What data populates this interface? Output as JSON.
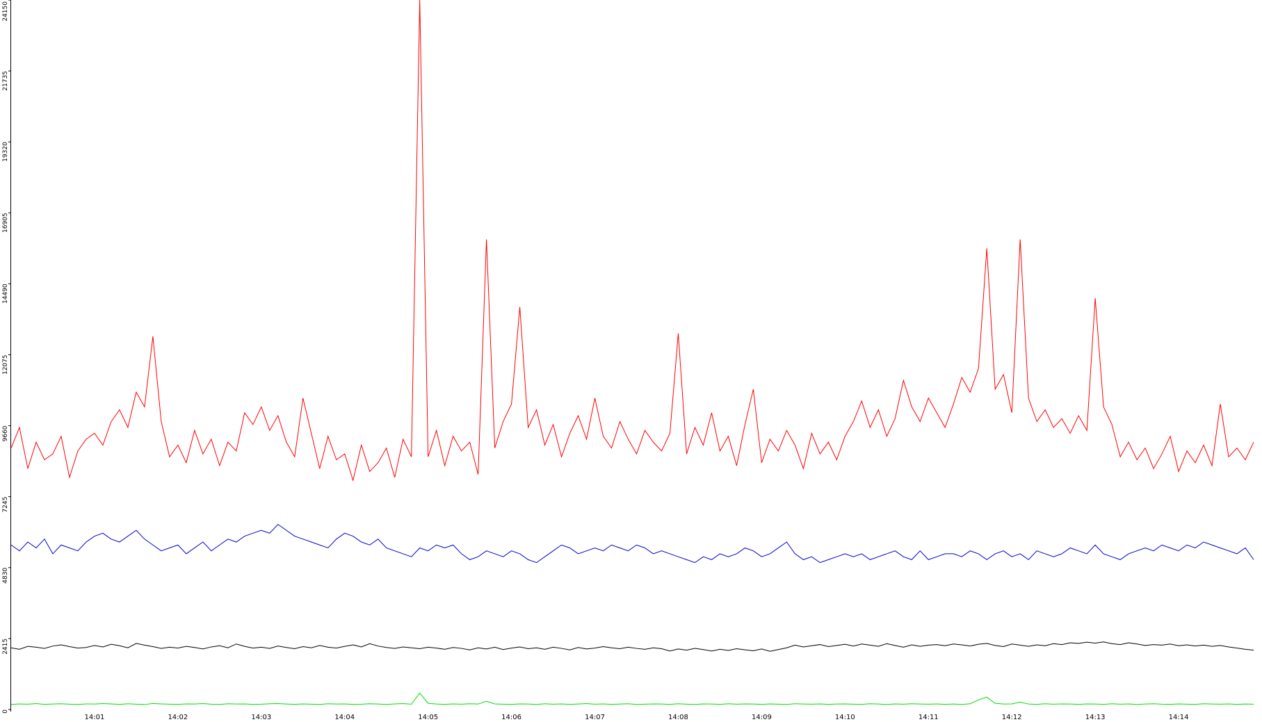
{
  "chart_data": {
    "type": "line",
    "categories": [
      null,
      null,
      null,
      null,
      null,
      null,
      null,
      null,
      null,
      null,
      "14:01",
      null,
      null,
      null,
      null,
      null,
      null,
      null,
      null,
      null,
      "14:02",
      null,
      null,
      null,
      null,
      null,
      null,
      null,
      null,
      null,
      "14:03",
      null,
      null,
      null,
      null,
      null,
      null,
      null,
      null,
      null,
      "14:04",
      null,
      null,
      null,
      null,
      null,
      null,
      null,
      null,
      null,
      "14:05",
      null,
      null,
      null,
      null,
      null,
      null,
      null,
      null,
      null,
      "14:06",
      null,
      null,
      null,
      null,
      null,
      null,
      null,
      null,
      null,
      "14:07",
      null,
      null,
      null,
      null,
      null,
      null,
      null,
      null,
      null,
      "14:08",
      null,
      null,
      null,
      null,
      null,
      null,
      null,
      null,
      null,
      "14:09",
      null,
      null,
      null,
      null,
      null,
      null,
      null,
      null,
      null,
      "14:10",
      null,
      null,
      null,
      null,
      null,
      null,
      null,
      null,
      null,
      "14:11",
      null,
      null,
      null,
      null,
      null,
      null,
      null,
      null,
      null,
      "14:12",
      null,
      null,
      null,
      null,
      null,
      null,
      null,
      null,
      null,
      "14:13",
      null,
      null,
      null,
      null,
      null,
      null,
      null,
      null,
      null,
      "14:14",
      null,
      null,
      null,
      null,
      null,
      null,
      null,
      null,
      null
    ],
    "ylim": [
      0,
      24150
    ],
    "yticks": [
      0,
      2415,
      4830,
      7245,
      9660,
      12075,
      14490,
      16905,
      19320,
      21735,
      24150
    ],
    "series": [
      {
        "color": "#ff0000",
        "values": [
          8900,
          9600,
          8200,
          9100,
          8500,
          8700,
          9300,
          7900,
          8800,
          9200,
          9400,
          9000,
          9800,
          10200,
          9600,
          10800,
          10300,
          12700,
          9800,
          8600,
          9000,
          8400,
          9500,
          8700,
          9200,
          8300,
          9100,
          8800,
          10100,
          9700,
          10300,
          9500,
          10000,
          9100,
          8600,
          10600,
          9400,
          8200,
          9300,
          8500,
          8700,
          7800,
          9000,
          8100,
          8400,
          8900,
          7900,
          9200,
          8600,
          24150,
          8600,
          9500,
          8300,
          9300,
          8800,
          9100,
          8000,
          16000,
          8900,
          9800,
          10400,
          13700,
          9600,
          10200,
          9000,
          9700,
          8600,
          9400,
          10000,
          9200,
          10600,
          9300,
          8900,
          9800,
          9200,
          8700,
          9500,
          9100,
          8800,
          9400,
          12800,
          8700,
          9600,
          9000,
          10100,
          8800,
          9300,
          8300,
          9700,
          10900,
          8400,
          9200,
          8800,
          9500,
          9000,
          8200,
          9400,
          8700,
          9100,
          8500,
          9300,
          9800,
          10500,
          9600,
          10200,
          9300,
          9900,
          11200,
          10300,
          9800,
          10600,
          10100,
          9600,
          10400,
          11300,
          10800,
          11600,
          15700,
          10900,
          11400,
          10100,
          16000,
          10600,
          9800,
          10200,
          9600,
          9900,
          9400,
          10000,
          9500,
          14000,
          10300,
          9700,
          8600,
          9100,
          8500,
          8900,
          8200,
          8700,
          9300,
          8100,
          8800,
          8400,
          9000,
          8300,
          10400,
          8600,
          8900,
          8500,
          9100
        ]
      },
      {
        "color": "#0000cc",
        "values": [
          5600,
          5400,
          5700,
          5500,
          5800,
          5300,
          5600,
          5500,
          5400,
          5700,
          5900,
          6000,
          5800,
          5700,
          5900,
          6100,
          5800,
          5600,
          5400,
          5500,
          5600,
          5300,
          5500,
          5700,
          5400,
          5600,
          5800,
          5700,
          5900,
          6000,
          6100,
          6000,
          6300,
          6100,
          5900,
          5800,
          5700,
          5600,
          5500,
          5800,
          6000,
          5900,
          5700,
          5600,
          5800,
          5500,
          5400,
          5300,
          5200,
          5500,
          5400,
          5600,
          5500,
          5600,
          5300,
          5100,
          5200,
          5400,
          5300,
          5200,
          5400,
          5300,
          5100,
          5000,
          5200,
          5400,
          5600,
          5500,
          5300,
          5400,
          5500,
          5400,
          5600,
          5500,
          5400,
          5600,
          5500,
          5300,
          5400,
          5300,
          5200,
          5100,
          5000,
          5200,
          5100,
          5300,
          5200,
          5300,
          5500,
          5400,
          5200,
          5300,
          5500,
          5700,
          5300,
          5100,
          5200,
          5000,
          5100,
          5200,
          5300,
          5200,
          5300,
          5100,
          5200,
          5300,
          5400,
          5200,
          5100,
          5400,
          5100,
          5200,
          5300,
          5300,
          5200,
          5400,
          5300,
          5100,
          5300,
          5400,
          5200,
          5300,
          5100,
          5400,
          5300,
          5200,
          5300,
          5500,
          5400,
          5300,
          5600,
          5300,
          5200,
          5100,
          5300,
          5400,
          5500,
          5400,
          5600,
          5500,
          5400,
          5600,
          5500,
          5700,
          5600,
          5500,
          5400,
          5300,
          5500,
          5100
        ]
      },
      {
        "color": "#000000",
        "values": [
          2100,
          2050,
          2150,
          2120,
          2080,
          2160,
          2200,
          2140,
          2090,
          2110,
          2180,
          2130,
          2220,
          2170,
          2100,
          2250,
          2190,
          2140,
          2080,
          2120,
          2090,
          2150,
          2110,
          2060,
          2130,
          2170,
          2100,
          2230,
          2150,
          2090,
          2120,
          2080,
          2160,
          2110,
          2070,
          2140,
          2100,
          2180,
          2120,
          2090,
          2150,
          2200,
          2130,
          2240,
          2160,
          2110,
          2080,
          2130,
          2100,
          2070,
          2120,
          2090,
          2050,
          2110,
          2080,
          2030,
          2100,
          2060,
          2120,
          2040,
          2090,
          2130,
          2070,
          2100,
          2050,
          2120,
          2080,
          2030,
          2110,
          2060,
          2090,
          2140,
          2100,
          2070,
          2120,
          2080,
          2050,
          2100,
          2070,
          1990,
          2060,
          2020,
          2080,
          2040,
          1990,
          2050,
          2010,
          2070,
          2030,
          2000,
          2060,
          1980,
          2040,
          2100,
          2190,
          2130,
          2170,
          2210,
          2140,
          2180,
          2220,
          2160,
          2230,
          2190,
          2150,
          2240,
          2180,
          2120,
          2200,
          2150,
          2190,
          2210,
          2170,
          2230,
          2200,
          2160,
          2220,
          2250,
          2180,
          2140,
          2230,
          2190,
          2150,
          2200,
          2170,
          2240,
          2210,
          2270,
          2250,
          2290,
          2260,
          2300,
          2240,
          2210,
          2270,
          2230,
          2180,
          2210,
          2190,
          2230,
          2170,
          2200,
          2160,
          2190,
          2150,
          2180,
          2130,
          2090,
          2050,
          2020
        ]
      },
      {
        "color": "#00dd00",
        "values": [
          170,
          190,
          180,
          200,
          175,
          185,
          195,
          180,
          170,
          190,
          185,
          200,
          190,
          175,
          195,
          180,
          170,
          205,
          190,
          180,
          175,
          190,
          185,
          200,
          180,
          170,
          195,
          185,
          190,
          175,
          180,
          195,
          200,
          185,
          175,
          190,
          180,
          170,
          195,
          185,
          190,
          175,
          180,
          195,
          185,
          170,
          190,
          200,
          180,
          560,
          210,
          185,
          175,
          190,
          180,
          195,
          185,
          280,
          190,
          180,
          175,
          190,
          185,
          170,
          195,
          180,
          190,
          175,
          185,
          200,
          180,
          190,
          175,
          185,
          195,
          170,
          180,
          190,
          185,
          175,
          195,
          180,
          170,
          190,
          185,
          175,
          195,
          180,
          190,
          185,
          175,
          190,
          180,
          170,
          195,
          185,
          180,
          190,
          175,
          185,
          190,
          180,
          175,
          195,
          185,
          170,
          190,
          180,
          195,
          185,
          180,
          190,
          175,
          185,
          170,
          195,
          330,
          420,
          210,
          185,
          190,
          250,
          185,
          175,
          195,
          180,
          190,
          185,
          175,
          190,
          185,
          175,
          195,
          180,
          190,
          170,
          185,
          195,
          180,
          175,
          190,
          180,
          175,
          195,
          185,
          180,
          190,
          175,
          185,
          180
        ]
      }
    ]
  }
}
